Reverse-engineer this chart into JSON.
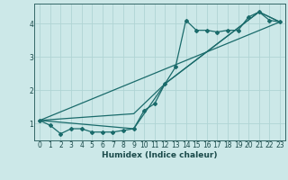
{
  "xlabel": "Humidex (Indice chaleur)",
  "bg_color": "#cce8e8",
  "grid_color": "#b0d4d4",
  "line_color": "#1a6b6b",
  "xlim": [
    -0.5,
    23.5
  ],
  "ylim": [
    0.5,
    4.6
  ],
  "yticks": [
    1,
    2,
    3,
    4
  ],
  "xticks": [
    0,
    1,
    2,
    3,
    4,
    5,
    6,
    7,
    8,
    9,
    10,
    11,
    12,
    13,
    14,
    15,
    16,
    17,
    18,
    19,
    20,
    21,
    22,
    23
  ],
  "series1_x": [
    0,
    1,
    2,
    3,
    4,
    5,
    6,
    7,
    8,
    9,
    10,
    11,
    12,
    13,
    14,
    15,
    16,
    17,
    18,
    19,
    20,
    21,
    22,
    23
  ],
  "series1_y": [
    1.1,
    0.95,
    0.7,
    0.85,
    0.85,
    0.75,
    0.75,
    0.75,
    0.8,
    0.85,
    1.4,
    1.6,
    2.2,
    2.7,
    4.1,
    3.8,
    3.8,
    3.75,
    3.8,
    3.8,
    4.2,
    4.35,
    4.1,
    4.05
  ],
  "line2_x": [
    0,
    23
  ],
  "line2_y": [
    1.1,
    4.05
  ],
  "line3_x": [
    0,
    9,
    12,
    21,
    23
  ],
  "line3_y": [
    1.1,
    0.85,
    2.2,
    4.35,
    4.05
  ],
  "line4_x": [
    0,
    9,
    12,
    21,
    23
  ],
  "line4_y": [
    1.1,
    1.3,
    2.2,
    4.35,
    4.05
  ]
}
